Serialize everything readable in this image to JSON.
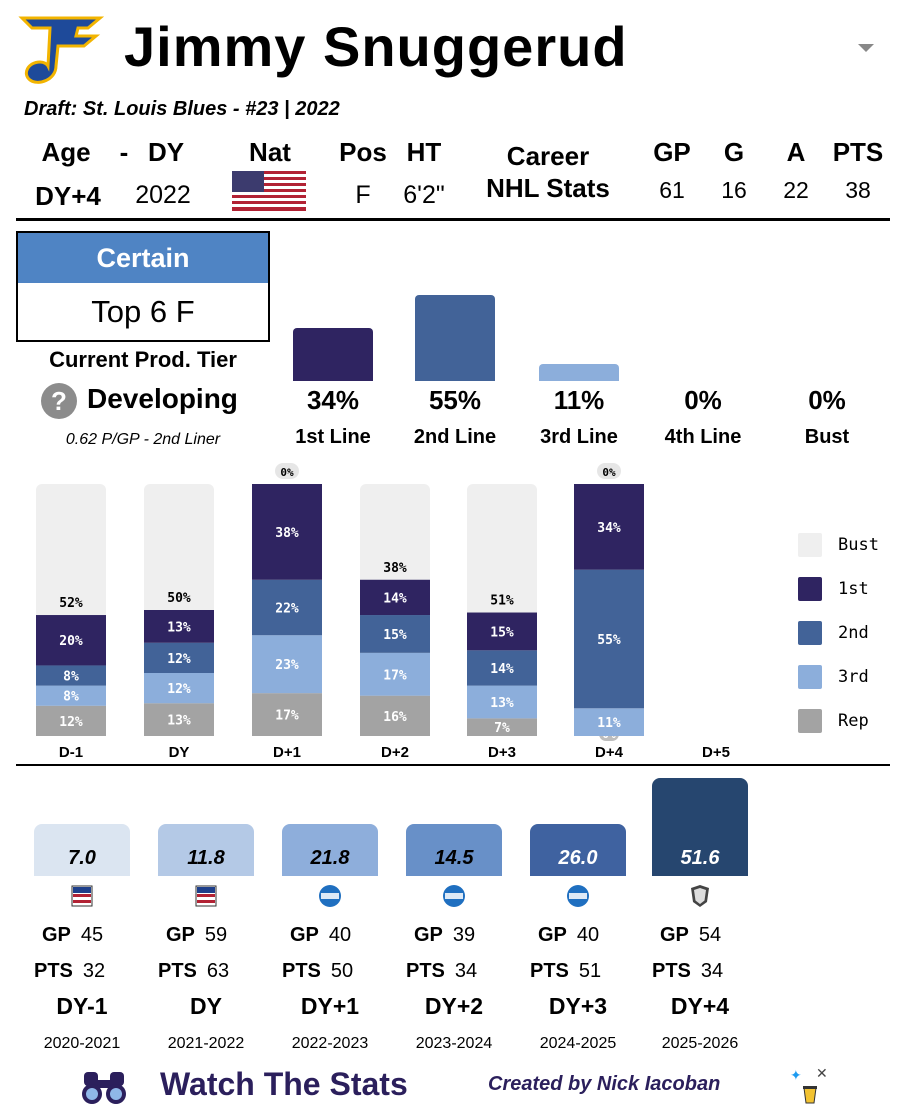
{
  "player": {
    "name": "Jimmy Snuggerud",
    "draft": "Draft: St. Louis Blues - #23 | 2022"
  },
  "bio": {
    "headers": [
      "Age",
      "-",
      "DY",
      "Nat",
      "Pos",
      "HT"
    ],
    "age": "DY+4",
    "dy": "2022",
    "pos": "F",
    "ht": "6'2\""
  },
  "career": {
    "label_1": "Career",
    "label_2": "NHL Stats",
    "headers": [
      "GP",
      "G",
      "A",
      "PTS"
    ],
    "values": [
      "61",
      "16",
      "22",
      "38"
    ]
  },
  "tier": {
    "certainty": "Certain",
    "projection": "Top 6 F",
    "current_label": "Current Prod. Tier",
    "help_glyph": "?",
    "status": "Developing",
    "ppg": "0.62 P/GP - 2nd Liner"
  },
  "colors": {
    "first": "#2f2461",
    "second": "#426398",
    "third": "#8caedb",
    "rep": "#a3a3a3",
    "bust": "#efefef",
    "ohl_blue": "#1f6fc0",
    "usntdp_red": "#b22234"
  },
  "chart_data": [
    {
      "type": "bar",
      "title": "Projection",
      "categories": [
        "1st Line",
        "2nd Line",
        "3rd Line",
        "4th Line",
        "Bust"
      ],
      "values": [
        34,
        55,
        11,
        0,
        0
      ],
      "labels": [
        "34%",
        "55%",
        "11%",
        "0%",
        "0%"
      ],
      "ylim": [
        0,
        55
      ]
    },
    {
      "type": "bar",
      "stacked": true,
      "title": "Tier probability by draft year",
      "categories": [
        "D-1",
        "DY",
        "D+1",
        "D+2",
        "D+3",
        "D+4",
        "D+5"
      ],
      "series": [
        {
          "name": "Rep",
          "values": [
            12,
            13,
            17,
            16,
            7,
            0,
            null
          ]
        },
        {
          "name": "3rd",
          "values": [
            8,
            12,
            23,
            17,
            13,
            11,
            null
          ]
        },
        {
          "name": "2nd",
          "values": [
            8,
            12,
            22,
            15,
            14,
            55,
            null
          ]
        },
        {
          "name": "1st",
          "values": [
            20,
            13,
            38,
            14,
            15,
            34,
            null
          ]
        },
        {
          "name": "Bust",
          "values": [
            52,
            50,
            0,
            38,
            51,
            0,
            null
          ]
        }
      ],
      "labels": {
        "Rep": [
          "12%",
          "13%",
          "17%",
          "16%",
          "7%",
          "0%",
          ""
        ],
        "3rd": [
          "8%",
          "12%",
          "23%",
          "17%",
          "13%",
          "11%",
          ""
        ],
        "2nd": [
          "8%",
          "12%",
          "22%",
          "15%",
          "14%",
          "55%",
          ""
        ],
        "1st": [
          "20%",
          "13%",
          "38%",
          "14%",
          "15%",
          "34%",
          ""
        ],
        "Bust": [
          "52%",
          "50%",
          "0%",
          "38%",
          "51%",
          "0%",
          ""
        ]
      },
      "legend": [
        "Bust",
        "1st",
        "2nd",
        "3rd",
        "Rep"
      ],
      "legend_position": "right",
      "ylim": [
        0,
        100
      ]
    },
    {
      "type": "bar",
      "title": "Season scores",
      "categories": [
        "DY-1",
        "DY",
        "DY+1",
        "DY+2",
        "DY+3",
        "DY+4"
      ],
      "values": [
        7.0,
        11.8,
        21.8,
        14.5,
        26.0,
        51.6
      ],
      "labels": [
        "7.0",
        "11.8",
        "21.8",
        "14.5",
        "26.0",
        "51.6"
      ],
      "seasons": [
        "2020-2021",
        "2021-2022",
        "2022-2023",
        "2023-2024",
        "2024-2025",
        "2025-2026"
      ],
      "leagues": [
        "USNTDP",
        "USNTDP",
        "NCAA",
        "NCAA",
        "NCAA",
        "NHL"
      ],
      "gp": [
        "45",
        "59",
        "40",
        "39",
        "40",
        "54"
      ],
      "pts": [
        "32",
        "63",
        "50",
        "34",
        "51",
        "34"
      ],
      "gp_label": "GP",
      "pts_label": "PTS",
      "colors": [
        "#dbe5f1",
        "#b4c9e6",
        "#8eaedb",
        "#6890c8",
        "#3f62a0",
        "#26466f"
      ],
      "text_colors": [
        "#000000",
        "#000000",
        "#000000",
        "#000000",
        "#ffffff",
        "#ffffff"
      ],
      "ylim": [
        0,
        51.6
      ]
    }
  ],
  "footer": {
    "brand": "Watch The Stats",
    "credit": "Created by Nick Iacoban"
  }
}
